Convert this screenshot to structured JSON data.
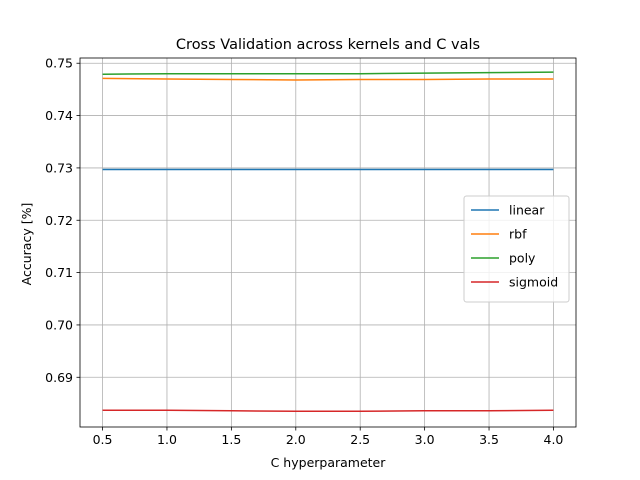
{
  "chart_data": {
    "type": "line",
    "title": "Cross Validation across kernels and C vals",
    "xlabel": "C hyperparameter",
    "ylabel": "Accuracy [%]",
    "x": [
      0.5,
      1.0,
      1.5,
      2.0,
      2.5,
      3.0,
      3.5,
      4.0
    ],
    "xticks": [
      "0.5",
      "1.0",
      "1.5",
      "2.0",
      "2.5",
      "3.0",
      "3.5",
      "4.0"
    ],
    "yticks": [
      "0.69",
      "0.70",
      "0.71",
      "0.72",
      "0.73",
      "0.74",
      "0.75"
    ],
    "xlim": [
      0.325,
      4.175
    ],
    "ylim": [
      0.6805,
      0.751
    ],
    "grid": true,
    "legend_position": "center-right",
    "series": [
      {
        "name": "linear",
        "color": "#1f77b4",
        "values": [
          0.7297,
          0.7297,
          0.7297,
          0.7297,
          0.7297,
          0.7297,
          0.7297,
          0.7297
        ]
      },
      {
        "name": "rbf",
        "color": "#ff7f0e",
        "values": [
          0.7471,
          0.747,
          0.7469,
          0.7468,
          0.7469,
          0.7469,
          0.747,
          0.747
        ]
      },
      {
        "name": "poly",
        "color": "#2ca02c",
        "values": [
          0.7479,
          0.748,
          0.748,
          0.748,
          0.748,
          0.7481,
          0.7482,
          0.7483
        ]
      },
      {
        "name": "sigmoid",
        "color": "#d62728",
        "values": [
          0.6837,
          0.6837,
          0.6836,
          0.6835,
          0.6835,
          0.6836,
          0.6836,
          0.6837
        ]
      }
    ]
  }
}
